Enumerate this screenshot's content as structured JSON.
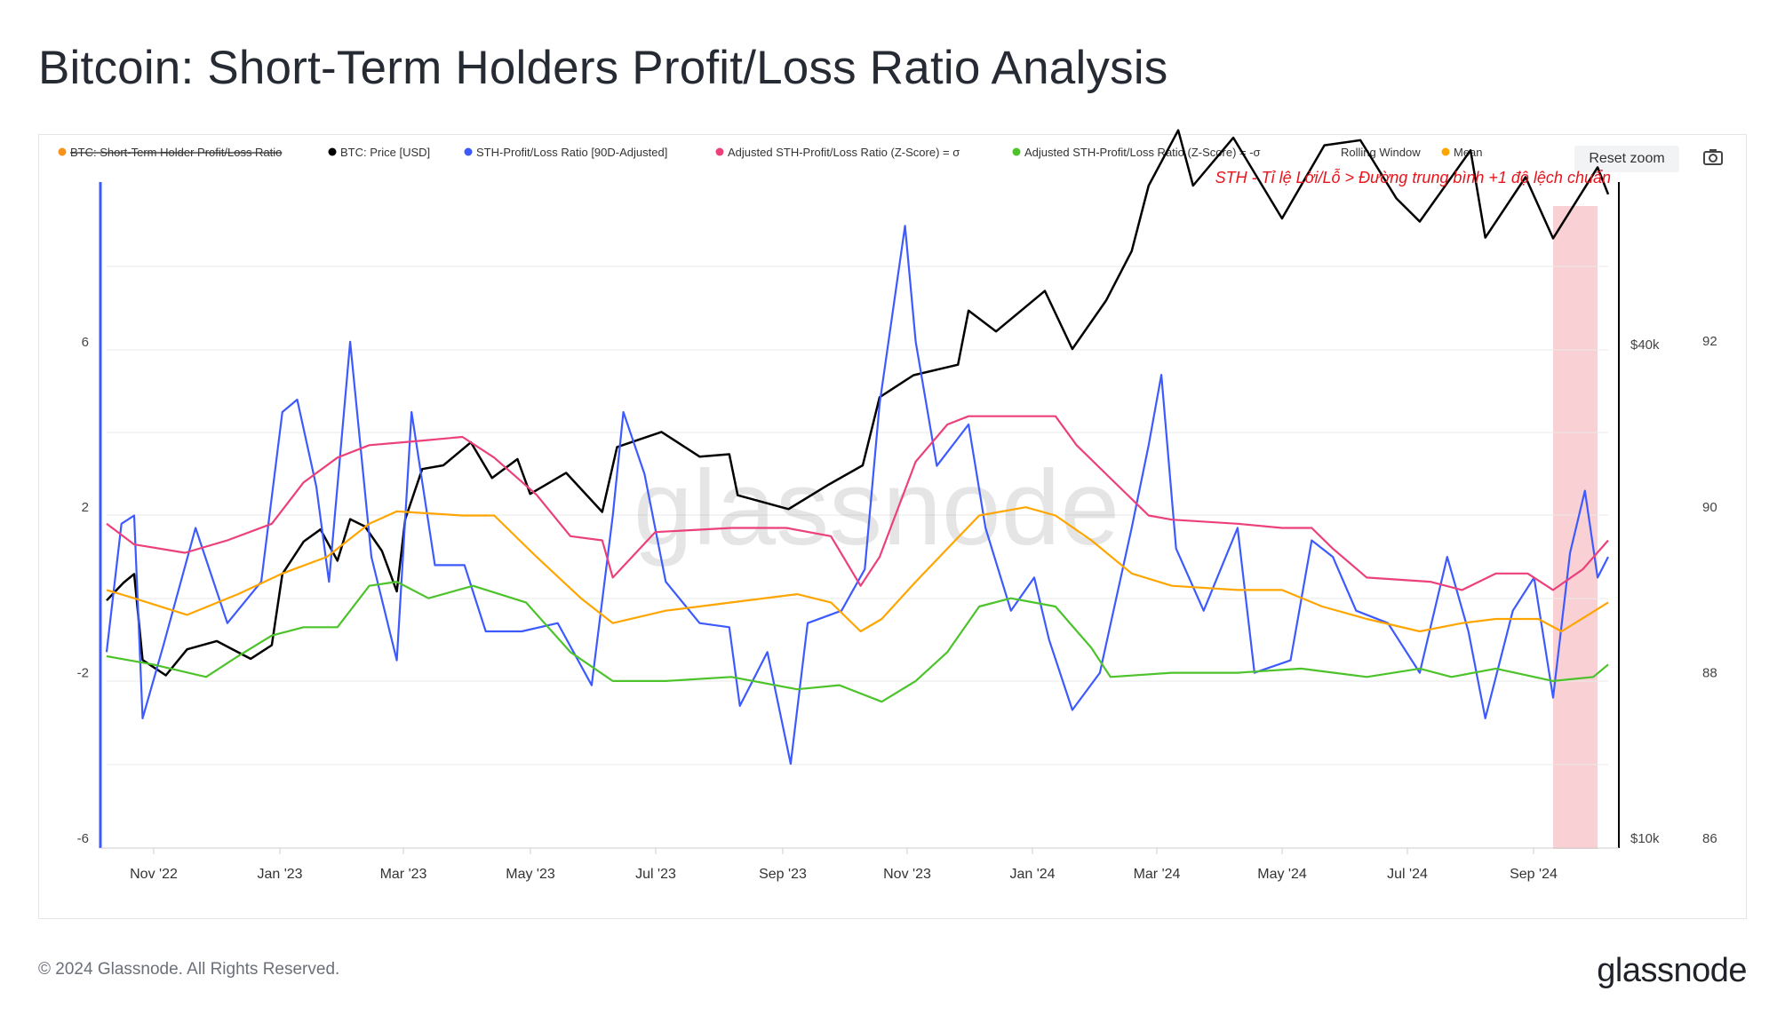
{
  "title": "Bitcoin: Short-Term Holders Profit/Loss Ratio Analysis",
  "footer": {
    "copyright": "© 2024 Glassnode. All Rights Reserved.",
    "logo": "glassnode"
  },
  "watermark": "glassnode",
  "toolbar": {
    "reset_zoom": "Reset zoom",
    "camera_icon": "camera-icon"
  },
  "legend": [
    {
      "key": "sth_pl",
      "label": "BTC: Short-Term Holder Profit/Loss Ratio",
      "color": "#f7931a",
      "disabled": true
    },
    {
      "key": "price",
      "label": "BTC: Price [USD]",
      "color": "#000000",
      "disabled": false
    },
    {
      "key": "adjusted",
      "label": "STH-Profit/Loss Ratio [90D-Adjusted]",
      "color": "#3d5afe",
      "disabled": false
    },
    {
      "key": "plus_sd",
      "label": "Adjusted STH-Profit/Loss Ratio (Z-Score) = σ",
      "color": "#ec407a",
      "disabled": false
    },
    {
      "key": "minus_sd",
      "label": "Adjusted STH-Profit/Loss Ratio (Z-Score) = -σ",
      "color": "#4cc32a",
      "disabled": false
    },
    {
      "key": "rolling",
      "label": "Rolling Window",
      "color": null,
      "disabled": false
    },
    {
      "key": "mean",
      "label": "Mean",
      "color": "#ffa500",
      "disabled": false
    }
  ],
  "annotation": "STH - Tỉ lệ Lời/Lỗ > Đường trung bình +1 độ lệch chuẩn",
  "chart_data": {
    "type": "line",
    "x_start": "2022-10-24",
    "x_end": "2024-10-02",
    "highlight_region": {
      "from": "2024-09-06",
      "to": "2024-09-27",
      "color": "#f8c6c9"
    },
    "x_ticks": [
      "Nov '22",
      "Jan '23",
      "Mar '23",
      "May '23",
      "Jul '23",
      "Sep '23",
      "Nov '23",
      "Jan '24",
      "Mar '24",
      "May '24",
      "Jul '24",
      "Sep '24"
    ],
    "y_left": {
      "ticks": [
        "6",
        "2",
        "-2",
        "-6"
      ],
      "values": [
        6,
        2,
        -2,
        -6
      ],
      "range": [
        -6,
        10
      ]
    },
    "y_right_price": {
      "ticks": [
        "$40k",
        "$10k"
      ],
      "values": [
        40000,
        10000
      ],
      "scale": "log"
    },
    "y_right_ratio": {
      "ticks": [
        "92",
        "90",
        "88",
        "86"
      ],
      "values": [
        92,
        90,
        88,
        86
      ],
      "range": [
        86,
        94
      ]
    },
    "series": [
      {
        "name": "BTC: Price [USD]",
        "axis": "price",
        "color": "#000000",
        "values": [
          [
            "2022-10-24",
            19500
          ],
          [
            "2022-11-01",
            20500
          ],
          [
            "2022-11-06",
            21000
          ],
          [
            "2022-11-10",
            16500
          ],
          [
            "2022-11-21",
            15800
          ],
          [
            "2022-12-01",
            17000
          ],
          [
            "2022-12-15",
            17400
          ],
          [
            "2022-12-31",
            16550
          ],
          [
            "2023-01-10",
            17200
          ],
          [
            "2023-01-15",
            21000
          ],
          [
            "2023-01-25",
            23000
          ],
          [
            "2023-02-02",
            23800
          ],
          [
            "2023-02-10",
            21800
          ],
          [
            "2023-02-16",
            24500
          ],
          [
            "2023-02-23",
            24000
          ],
          [
            "2023-03-03",
            22400
          ],
          [
            "2023-03-10",
            20000
          ],
          [
            "2023-03-14",
            24500
          ],
          [
            "2023-03-22",
            28200
          ],
          [
            "2023-04-01",
            28500
          ],
          [
            "2023-04-14",
            30400
          ],
          [
            "2023-04-24",
            27500
          ],
          [
            "2023-05-06",
            29000
          ],
          [
            "2023-05-12",
            26300
          ],
          [
            "2023-05-29",
            27900
          ],
          [
            "2023-06-15",
            25000
          ],
          [
            "2023-06-22",
            30000
          ],
          [
            "2023-07-13",
            31300
          ],
          [
            "2023-07-31",
            29200
          ],
          [
            "2023-08-14",
            29400
          ],
          [
            "2023-08-18",
            26200
          ],
          [
            "2023-09-11",
            25200
          ],
          [
            "2023-09-30",
            27000
          ],
          [
            "2023-10-16",
            28500
          ],
          [
            "2023-10-24",
            34500
          ],
          [
            "2023-11-09",
            36700
          ],
          [
            "2023-11-30",
            37800
          ],
          [
            "2023-12-05",
            44000
          ],
          [
            "2023-12-18",
            41500
          ],
          [
            "2024-01-10",
            46500
          ],
          [
            "2024-01-23",
            39500
          ],
          [
            "2024-02-08",
            45300
          ],
          [
            "2024-02-20",
            52000
          ],
          [
            "2024-02-28",
            62500
          ],
          [
            "2024-03-13",
            73000
          ],
          [
            "2024-03-20",
            62500
          ],
          [
            "2024-04-08",
            71500
          ],
          [
            "2024-05-01",
            57000
          ],
          [
            "2024-05-21",
            70000
          ],
          [
            "2024-06-07",
            71000
          ],
          [
            "2024-06-24",
            60300
          ],
          [
            "2024-07-05",
            56500
          ],
          [
            "2024-07-29",
            69000
          ],
          [
            "2024-08-05",
            54000
          ],
          [
            "2024-08-24",
            64000
          ],
          [
            "2024-09-06",
            53900
          ],
          [
            "2024-09-27",
            65800
          ],
          [
            "2024-10-02",
            61000
          ]
        ]
      },
      {
        "name": "STH-Profit/Loss Ratio [90D-Adjusted]",
        "axis": "left",
        "color": "#3d5afe",
        "values": [
          [
            "2022-10-24",
            -1.5
          ],
          [
            "2022-10-31",
            1.6
          ],
          [
            "2022-11-06",
            1.8
          ],
          [
            "2022-11-10",
            -3.1
          ],
          [
            "2022-11-20",
            -1.3
          ],
          [
            "2022-12-05",
            1.5
          ],
          [
            "2022-12-20",
            -0.8
          ],
          [
            "2023-01-05",
            0.2
          ],
          [
            "2023-01-15",
            4.3
          ],
          [
            "2023-01-22",
            4.6
          ],
          [
            "2023-01-31",
            2.5
          ],
          [
            "2023-02-06",
            0.2
          ],
          [
            "2023-02-16",
            6.0
          ],
          [
            "2023-02-26",
            0.8
          ],
          [
            "2023-03-10",
            -1.7
          ],
          [
            "2023-03-17",
            4.3
          ],
          [
            "2023-03-28",
            0.6
          ],
          [
            "2023-04-11",
            0.6
          ],
          [
            "2023-04-21",
            -1.0
          ],
          [
            "2023-05-08",
            -1.0
          ],
          [
            "2023-05-25",
            -0.8
          ],
          [
            "2023-06-10",
            -2.3
          ],
          [
            "2023-06-20",
            1.8
          ],
          [
            "2023-06-25",
            4.3
          ],
          [
            "2023-07-05",
            2.8
          ],
          [
            "2023-07-15",
            0.2
          ],
          [
            "2023-07-31",
            -0.8
          ],
          [
            "2023-08-14",
            -0.9
          ],
          [
            "2023-08-19",
            -2.8
          ],
          [
            "2023-09-01",
            -1.5
          ],
          [
            "2023-09-12",
            -4.2
          ],
          [
            "2023-09-20",
            -0.8
          ],
          [
            "2023-10-06",
            -0.5
          ],
          [
            "2023-10-17",
            0.5
          ],
          [
            "2023-10-24",
            4.5
          ],
          [
            "2023-11-05",
            8.8
          ],
          [
            "2023-11-10",
            6.0
          ],
          [
            "2023-11-20",
            3.0
          ],
          [
            "2023-12-05",
            4.0
          ],
          [
            "2023-12-13",
            1.5
          ],
          [
            "2023-12-25",
            -0.5
          ],
          [
            "2024-01-05",
            0.3
          ],
          [
            "2024-01-12",
            -1.2
          ],
          [
            "2024-01-23",
            -2.9
          ],
          [
            "2024-02-05",
            -2.0
          ],
          [
            "2024-02-20",
            1.5
          ],
          [
            "2024-02-28",
            3.5
          ],
          [
            "2024-03-05",
            5.2
          ],
          [
            "2024-03-12",
            1.0
          ],
          [
            "2024-03-25",
            -0.5
          ],
          [
            "2024-04-10",
            1.5
          ],
          [
            "2024-04-18",
            -2.0
          ],
          [
            "2024-05-05",
            -1.7
          ],
          [
            "2024-05-15",
            1.2
          ],
          [
            "2024-05-25",
            0.8
          ],
          [
            "2024-06-05",
            -0.5
          ],
          [
            "2024-06-20",
            -0.8
          ],
          [
            "2024-07-05",
            -2.0
          ],
          [
            "2024-07-18",
            0.8
          ],
          [
            "2024-07-28",
            -1.0
          ],
          [
            "2024-08-05",
            -3.1
          ],
          [
            "2024-08-18",
            -0.5
          ],
          [
            "2024-08-28",
            0.3
          ],
          [
            "2024-09-06",
            -2.6
          ],
          [
            "2024-09-14",
            0.9
          ],
          [
            "2024-09-21",
            2.4
          ],
          [
            "2024-09-27",
            0.3
          ],
          [
            "2024-10-02",
            0.8
          ]
        ]
      },
      {
        "name": "Adjusted STH-Profit/Loss Ratio (Z-Score) = σ",
        "axis": "left",
        "color": "#ec407a",
        "values": [
          [
            "2022-10-24",
            1.6
          ],
          [
            "2022-11-06",
            1.1
          ],
          [
            "2022-11-30",
            0.9
          ],
          [
            "2022-12-20",
            1.2
          ],
          [
            "2023-01-10",
            1.6
          ],
          [
            "2023-01-25",
            2.6
          ],
          [
            "2023-02-10",
            3.2
          ],
          [
            "2023-02-25",
            3.5
          ],
          [
            "2023-03-20",
            3.6
          ],
          [
            "2023-04-10",
            3.7
          ],
          [
            "2023-04-25",
            3.2
          ],
          [
            "2023-05-15",
            2.3
          ],
          [
            "2023-05-31",
            1.3
          ],
          [
            "2023-06-15",
            1.2
          ],
          [
            "2023-06-20",
            0.3
          ],
          [
            "2023-07-10",
            1.4
          ],
          [
            "2023-08-15",
            1.5
          ],
          [
            "2023-09-10",
            1.5
          ],
          [
            "2023-10-01",
            1.3
          ],
          [
            "2023-10-15",
            0.1
          ],
          [
            "2023-10-24",
            0.8
          ],
          [
            "2023-11-10",
            3.1
          ],
          [
            "2023-11-25",
            4.0
          ],
          [
            "2023-12-05",
            4.2
          ],
          [
            "2023-12-31",
            4.2
          ],
          [
            "2024-01-15",
            4.2
          ],
          [
            "2024-01-25",
            3.5
          ],
          [
            "2024-02-10",
            2.7
          ],
          [
            "2024-02-28",
            1.8
          ],
          [
            "2024-03-10",
            1.7
          ],
          [
            "2024-04-10",
            1.6
          ],
          [
            "2024-05-01",
            1.5
          ],
          [
            "2024-05-15",
            1.5
          ],
          [
            "2024-05-25",
            1.0
          ],
          [
            "2024-06-10",
            0.3
          ],
          [
            "2024-07-10",
            0.2
          ],
          [
            "2024-07-25",
            0.0
          ],
          [
            "2024-08-10",
            0.4
          ],
          [
            "2024-08-25",
            0.4
          ],
          [
            "2024-09-06",
            0.0
          ],
          [
            "2024-09-20",
            0.5
          ],
          [
            "2024-10-02",
            1.2
          ]
        ]
      },
      {
        "name": "Mean",
        "axis": "left",
        "color": "#ffa500",
        "values": [
          [
            "2022-10-24",
            0.0
          ],
          [
            "2022-11-06",
            -0.2
          ],
          [
            "2022-12-01",
            -0.6
          ],
          [
            "2022-12-25",
            -0.1
          ],
          [
            "2023-01-15",
            0.4
          ],
          [
            "2023-02-05",
            0.8
          ],
          [
            "2023-02-25",
            1.6
          ],
          [
            "2023-03-10",
            1.9
          ],
          [
            "2023-04-10",
            1.8
          ],
          [
            "2023-04-25",
            1.8
          ],
          [
            "2023-05-15",
            0.8
          ],
          [
            "2023-06-05",
            -0.2
          ],
          [
            "2023-06-20",
            -0.8
          ],
          [
            "2023-07-15",
            -0.5
          ],
          [
            "2023-08-15",
            -0.3
          ],
          [
            "2023-09-15",
            -0.1
          ],
          [
            "2023-10-01",
            -0.3
          ],
          [
            "2023-10-15",
            -1.0
          ],
          [
            "2023-10-25",
            -0.7
          ],
          [
            "2023-11-10",
            0.2
          ],
          [
            "2023-11-25",
            1.0
          ],
          [
            "2023-12-10",
            1.8
          ],
          [
            "2024-01-01",
            2.0
          ],
          [
            "2024-01-15",
            1.8
          ],
          [
            "2024-02-01",
            1.2
          ],
          [
            "2024-02-20",
            0.4
          ],
          [
            "2024-03-10",
            0.1
          ],
          [
            "2024-04-10",
            0.0
          ],
          [
            "2024-05-01",
            0.0
          ],
          [
            "2024-05-20",
            -0.4
          ],
          [
            "2024-06-10",
            -0.7
          ],
          [
            "2024-07-05",
            -1.0
          ],
          [
            "2024-07-25",
            -0.8
          ],
          [
            "2024-08-10",
            -0.7
          ],
          [
            "2024-08-30",
            -0.7
          ],
          [
            "2024-09-10",
            -1.0
          ],
          [
            "2024-10-02",
            -0.3
          ]
        ]
      },
      {
        "name": "Adjusted STH-Profit/Loss Ratio (Z-Score) = -σ",
        "axis": "left",
        "color": "#4cc32a",
        "values": [
          [
            "2022-10-24",
            -1.6
          ],
          [
            "2022-11-15",
            -1.8
          ],
          [
            "2022-12-10",
            -2.1
          ],
          [
            "2022-12-25",
            -1.6
          ],
          [
            "2023-01-10",
            -1.1
          ],
          [
            "2023-01-25",
            -0.9
          ],
          [
            "2023-02-10",
            -0.9
          ],
          [
            "2023-02-25",
            0.1
          ],
          [
            "2023-03-10",
            0.2
          ],
          [
            "2023-03-25",
            -0.2
          ],
          [
            "2023-04-15",
            0.1
          ],
          [
            "2023-05-10",
            -0.3
          ],
          [
            "2023-05-31",
            -1.5
          ],
          [
            "2023-06-20",
            -2.2
          ],
          [
            "2023-07-15",
            -2.2
          ],
          [
            "2023-08-15",
            -2.1
          ],
          [
            "2023-09-15",
            -2.4
          ],
          [
            "2023-10-05",
            -2.3
          ],
          [
            "2023-10-25",
            -2.7
          ],
          [
            "2023-11-10",
            -2.2
          ],
          [
            "2023-11-25",
            -1.5
          ],
          [
            "2023-12-10",
            -0.4
          ],
          [
            "2023-12-25",
            -0.2
          ],
          [
            "2024-01-15",
            -0.4
          ],
          [
            "2024-02-01",
            -1.4
          ],
          [
            "2024-02-10",
            -2.1
          ],
          [
            "2024-03-10",
            -2.0
          ],
          [
            "2024-04-10",
            -2.0
          ],
          [
            "2024-05-10",
            -1.9
          ],
          [
            "2024-06-10",
            -2.1
          ],
          [
            "2024-07-05",
            -1.9
          ],
          [
            "2024-07-20",
            -2.1
          ],
          [
            "2024-08-10",
            -1.9
          ],
          [
            "2024-09-06",
            -2.2
          ],
          [
            "2024-09-25",
            -2.1
          ],
          [
            "2024-10-02",
            -1.8
          ]
        ]
      }
    ]
  }
}
